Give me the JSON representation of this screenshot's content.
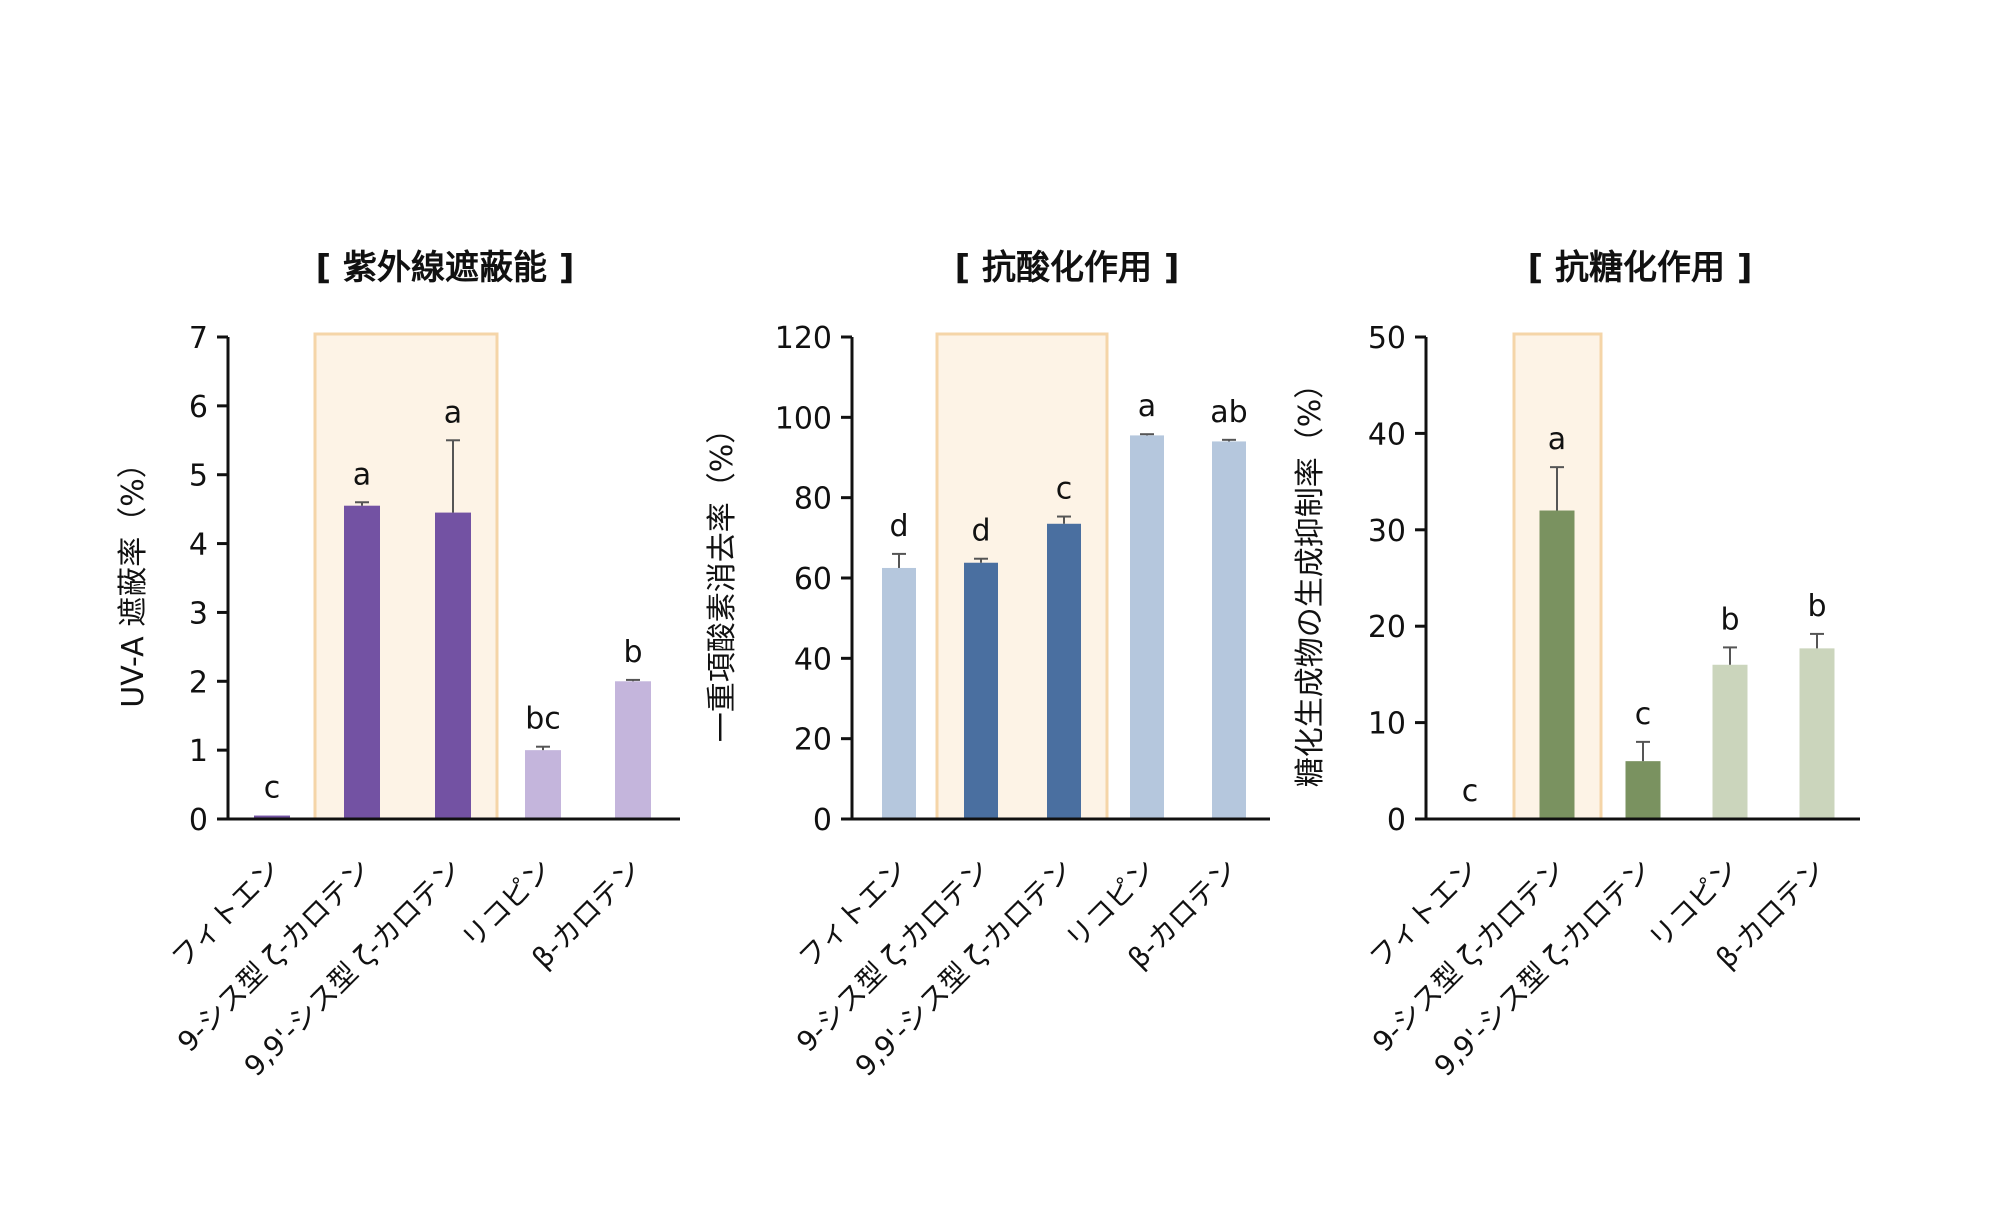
{
  "chart_data": [
    {
      "type": "bar",
      "title": "[ 紫外線遮蔽能 ]",
      "ylabel": "UV-A 遮蔽率（%）",
      "xlabel": "",
      "ylim": [
        0,
        7
      ],
      "yticks": [
        0,
        1,
        2,
        3,
        4,
        5,
        6,
        7
      ],
      "categories": [
        "フィトエン",
        "9-シス型 ζ-カロテン",
        "9,9'-シス型 ζ-カロテン",
        "リコピン",
        "β-カロテン"
      ],
      "values": [
        0.05,
        4.55,
        4.45,
        1.0,
        2.0
      ],
      "errors": [
        0.0,
        0.05,
        1.05,
        0.05,
        0.02
      ],
      "significance": [
        "c",
        "a",
        "a",
        "bc",
        "b"
      ],
      "bar_colors": [
        "#7352a3",
        "#7352a3",
        "#7352a3",
        "#c4b5dc",
        "#c4b5dc"
      ],
      "highlight_categories": [
        1,
        2
      ],
      "highlight_color": "#fdf3e6",
      "highlight_border": "#f5d5a8"
    },
    {
      "type": "bar",
      "title": "[ 抗酸化作用 ]",
      "ylabel": "一重項酸素消去率（%）",
      "xlabel": "",
      "ylim": [
        0,
        120
      ],
      "yticks": [
        0,
        20,
        40,
        60,
        80,
        100,
        120
      ],
      "categories": [
        "フィトエン",
        "9-シス型 ζ-カロテン",
        "9,9'-シス型 ζ-カロテン",
        "リコピン",
        "β-カロテン"
      ],
      "values": [
        62.5,
        63.8,
        73.5,
        95.5,
        94.0
      ],
      "errors": [
        3.5,
        1.0,
        1.8,
        0.3,
        0.4
      ],
      "significance": [
        "d",
        "d",
        "c",
        "a",
        "ab"
      ],
      "bar_colors": [
        "#b5c7dd",
        "#4a6fa0",
        "#4a6fa0",
        "#b5c7dd",
        "#b5c7dd"
      ],
      "highlight_categories": [
        1,
        2
      ],
      "highlight_color": "#fdf3e6",
      "highlight_border": "#f5d5a8"
    },
    {
      "type": "bar",
      "title": "[ 抗糖化作用 ]",
      "ylabel": "糖化生成物の生成抑制率（%）",
      "xlabel": "",
      "ylim": [
        0,
        50
      ],
      "yticks": [
        0,
        10,
        20,
        30,
        40,
        50
      ],
      "categories": [
        "フィトエン",
        "9-シス型 ζ-カロテン",
        "9,9'-シス型 ζ-カロテン",
        "リコピン",
        "β-カロテン"
      ],
      "values": [
        0,
        32.0,
        6.0,
        16.0,
        17.7
      ],
      "errors": [
        0,
        4.5,
        2.0,
        1.8,
        1.5
      ],
      "significance": [
        "c",
        "a",
        "c",
        "b",
        "b"
      ],
      "bar_colors": [
        "#7a9260",
        "#7a9260",
        "#7a9260",
        "#cbd5bc",
        "#cbd5bc"
      ],
      "highlight_categories": [
        1
      ],
      "highlight_color": "#fdf3e6",
      "highlight_border": "#f5d5a8"
    }
  ]
}
